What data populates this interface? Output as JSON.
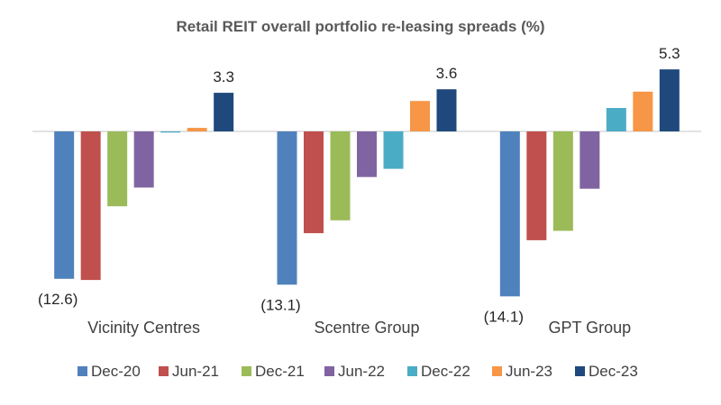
{
  "chart_data": {
    "type": "bar",
    "title": "Retail REIT overall portfolio re-leasing spreads (%)",
    "categories": [
      "Vicinity Centres",
      "Scentre Group",
      "GPT Group"
    ],
    "series": [
      {
        "name": "Dec-20",
        "color": "#4F81BD",
        "values": [
          -12.6,
          -13.1,
          -14.1
        ]
      },
      {
        "name": "Jun-21",
        "color": "#C0504D",
        "values": [
          -12.7,
          -8.7,
          -9.3
        ]
      },
      {
        "name": "Dec-21",
        "color": "#9BBB59",
        "values": [
          -6.4,
          -7.6,
          -8.5
        ]
      },
      {
        "name": "Jun-22",
        "color": "#8064A2",
        "values": [
          -4.8,
          -3.9,
          -4.9
        ]
      },
      {
        "name": "Dec-22",
        "color": "#4BACC6",
        "values": [
          -0.1,
          -3.2,
          2.0
        ]
      },
      {
        "name": "Jun-23",
        "color": "#F79646",
        "values": [
          0.3,
          2.6,
          3.4
        ]
      },
      {
        "name": "Dec-23",
        "color": "#1F497D",
        "values": [
          3.3,
          3.6,
          5.3
        ]
      }
    ],
    "data_labels": [
      {
        "category": 0,
        "series": 0,
        "text": "(12.6)"
      },
      {
        "category": 0,
        "series": 6,
        "text": "3.3"
      },
      {
        "category": 1,
        "series": 0,
        "text": "(13.1)"
      },
      {
        "category": 1,
        "series": 6,
        "text": "3.6"
      },
      {
        "category": 2,
        "series": 0,
        "text": "(14.1)"
      },
      {
        "category": 2,
        "series": 6,
        "text": "5.3"
      }
    ],
    "ylim": [
      -15,
      6
    ],
    "grid": false,
    "legend_position": "bottom"
  }
}
